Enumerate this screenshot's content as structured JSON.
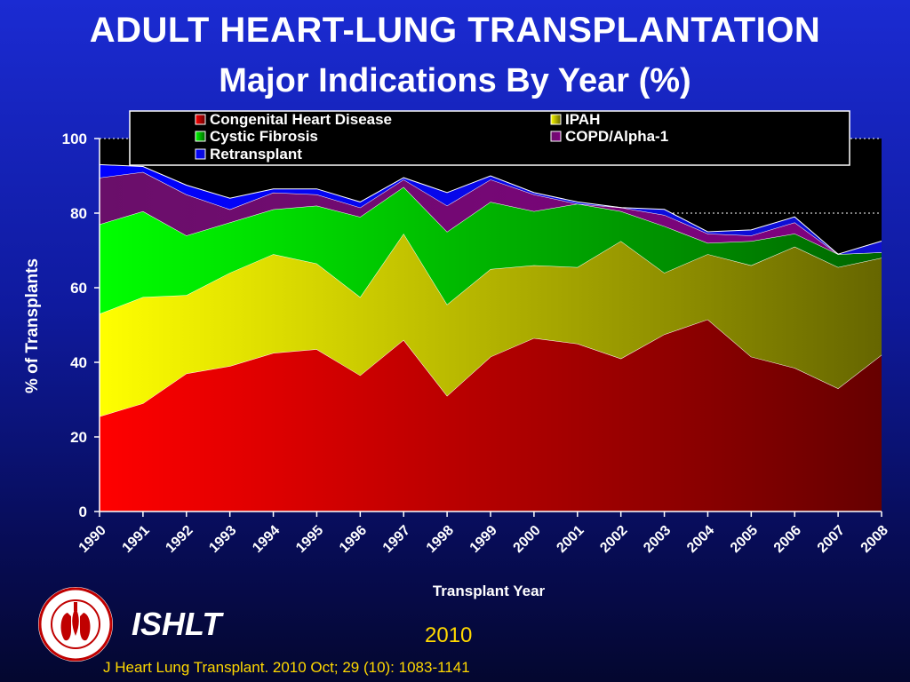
{
  "title": "ADULT HEART-LUNG TRANSPLANTATION",
  "subtitle": "Major Indications By Year (%)",
  "footer": {
    "org": "ISHLT",
    "year": "2010",
    "citation": "J Heart Lung Transplant. 2010 Oct; 29 (10): 1083-1141"
  },
  "chart_data": {
    "type": "area",
    "stacked": true,
    "xlabel": "Transplant Year",
    "ylabel": "% of Transplants",
    "ylim": [
      0,
      100
    ],
    "yticks": [
      0,
      20,
      40,
      60,
      80,
      100
    ],
    "gridlines": [
      80,
      100
    ],
    "legend_position": "top",
    "categories": [
      "1990",
      "1991",
      "1992",
      "1993",
      "1994",
      "1995",
      "1996",
      "1997",
      "1998",
      "1999",
      "2000",
      "2001",
      "2002",
      "2003",
      "2004",
      "2005",
      "2006",
      "2007",
      "2008"
    ],
    "series": [
      {
        "name": "Congenital Heart Disease",
        "color": "#e00000",
        "values": [
          25.5,
          29,
          37,
          39,
          42.5,
          43.5,
          36.5,
          46,
          31,
          41.5,
          46.5,
          45,
          41,
          47.5,
          51.5,
          41.5,
          38.5,
          33,
          42
        ]
      },
      {
        "name": "IPAH",
        "color": "#ffff00",
        "values": [
          27.5,
          28.5,
          21,
          25,
          26.5,
          23,
          21,
          28.5,
          24.5,
          23.5,
          19.5,
          20.5,
          31.5,
          16.5,
          17.5,
          24.5,
          32.5,
          32.5,
          26
        ]
      },
      {
        "name": "Cystic Fibrosis",
        "color": "#00e000",
        "values": [
          24,
          23,
          16,
          13.5,
          12,
          15.5,
          21.5,
          12.5,
          19.5,
          18,
          14.5,
          17,
          8,
          12.5,
          3,
          6.5,
          3.5,
          3.5,
          1.5
        ]
      },
      {
        "name": "COPD/Alpha-1",
        "color": "#800080",
        "values": [
          12.5,
          10.5,
          11,
          3.5,
          4.5,
          3,
          2.5,
          2,
          7,
          6,
          4.5,
          0,
          1,
          3,
          2.5,
          1.5,
          3,
          0,
          0
        ]
      },
      {
        "name": "Retransplant",
        "color": "#0000ff",
        "values": [
          3.5,
          1.5,
          2.5,
          3,
          1,
          1.5,
          1.5,
          0.5,
          3.5,
          1,
          0.5,
          0.5,
          0,
          1.5,
          0.5,
          1.5,
          1.5,
          0,
          3
        ]
      }
    ]
  }
}
